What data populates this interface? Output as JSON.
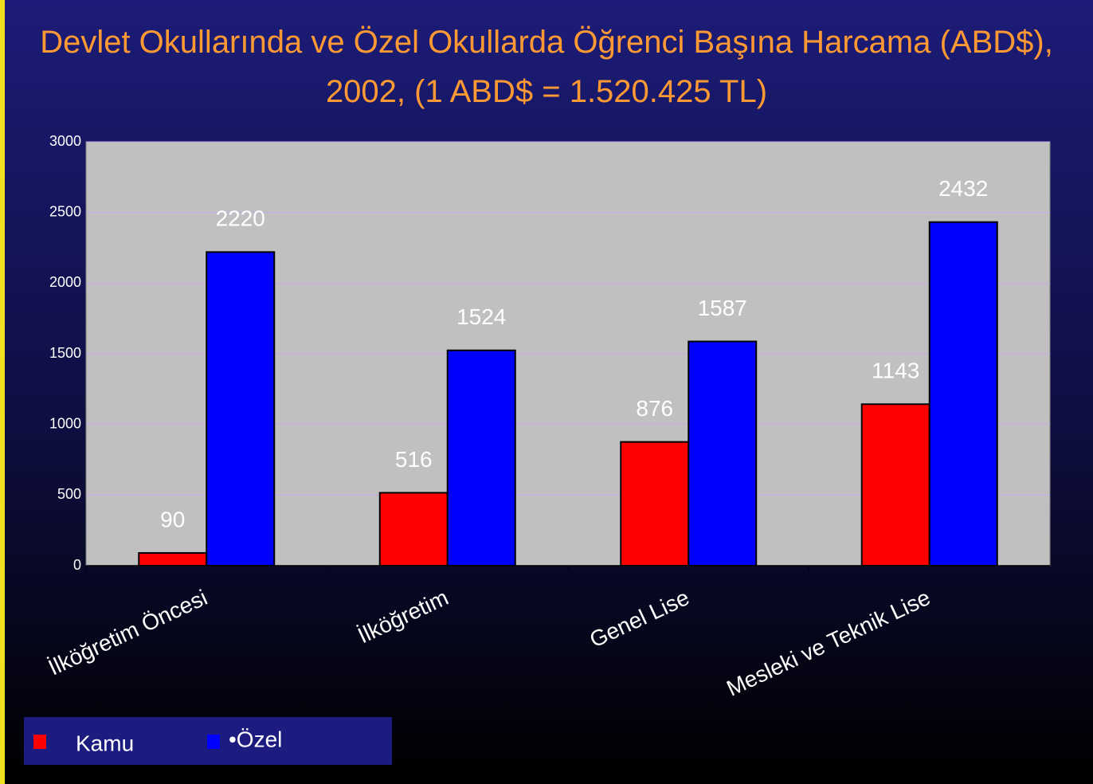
{
  "chart_data": {
    "type": "bar",
    "title": "Devlet Okullarında ve Özel Okullarda Öğrenci Başına Harcama (ABD$), 2002, (1 ABD$ = 1.520.425 TL)",
    "categories": [
      "İlköğretim Öncesi",
      "İlköğretim",
      "Genel Lise",
      "Mesleki ve Teknik Lise"
    ],
    "series": [
      {
        "name": "Kamu",
        "color": "#ff0000",
        "values": [
          90,
          516,
          876,
          1143
        ]
      },
      {
        "name": "•Özel",
        "color": "#0000ff",
        "values": [
          2220,
          1524,
          1587,
          2432
        ]
      }
    ],
    "ylim": [
      0,
      3000
    ],
    "yticks": [
      0,
      500,
      1000,
      1500,
      2000,
      2500,
      3000
    ],
    "grid": true,
    "legend": "bottom-left"
  }
}
